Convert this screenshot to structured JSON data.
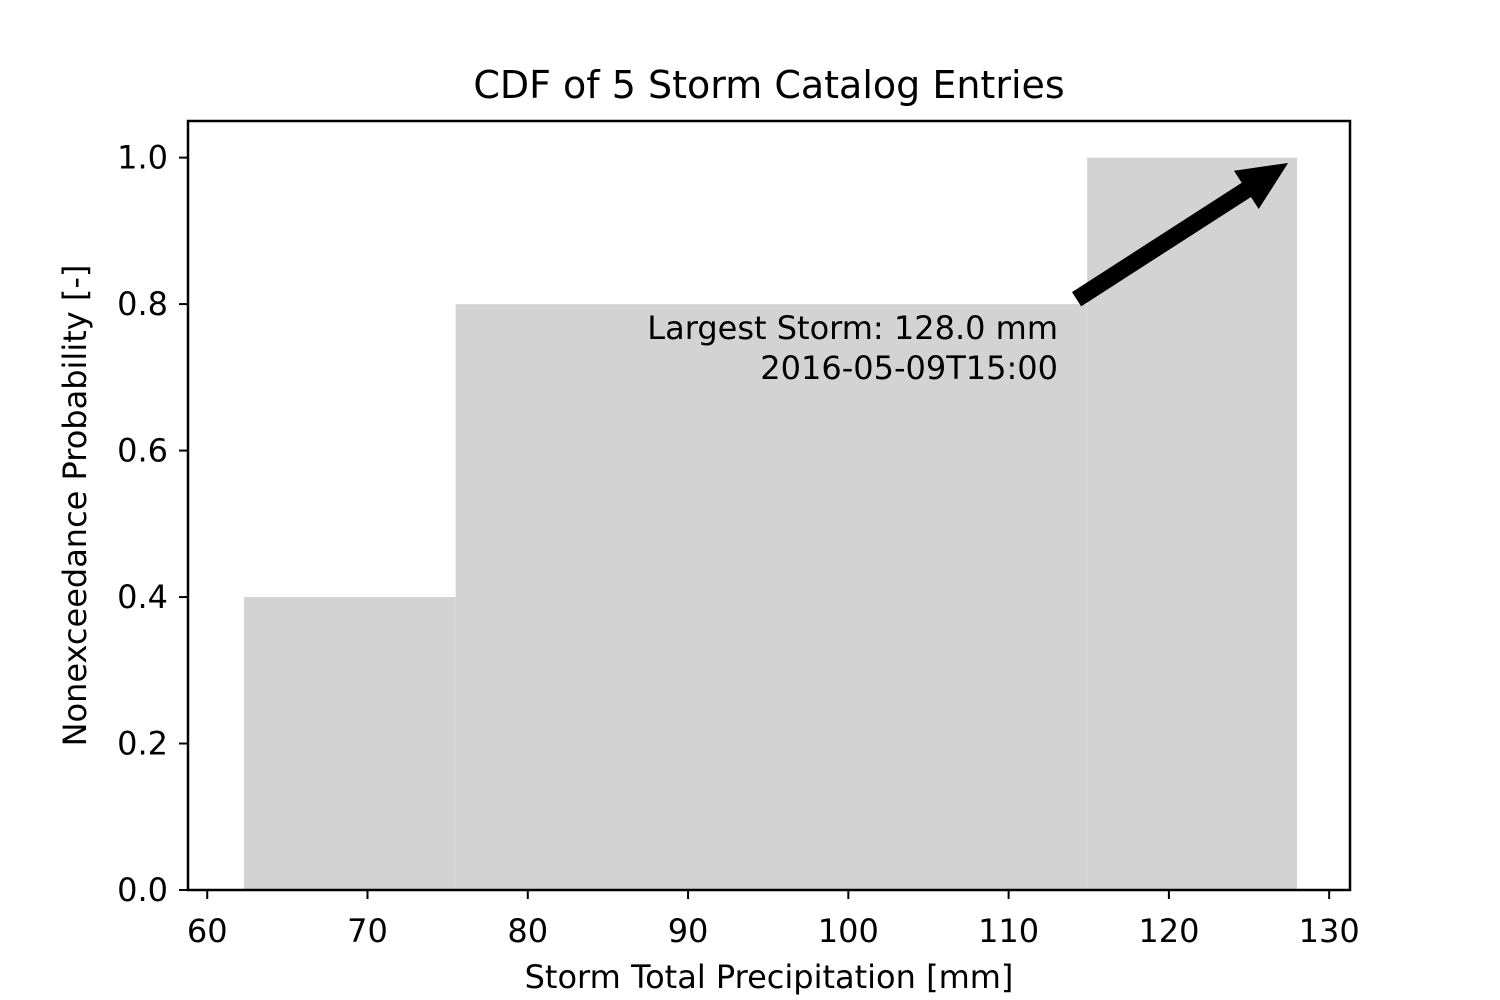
{
  "chart_data": {
    "type": "bar",
    "title": "CDF of 5 Storm Catalog Entries",
    "xlabel": "Storm Total Precipitation [mm]",
    "ylabel": "Nonexceedance Probability [-]",
    "xlim": [
      58.8,
      131.3
    ],
    "ylim": [
      0,
      1.05
    ],
    "xticks": [
      60,
      70,
      80,
      90,
      100,
      110,
      120,
      130
    ],
    "xtick_labels": [
      "60",
      "70",
      "80",
      "90",
      "100",
      "110",
      "120",
      "130"
    ],
    "yticks": [
      0.0,
      0.2,
      0.4,
      0.6,
      0.8,
      1.0
    ],
    "ytick_labels": [
      "0.0",
      "0.2",
      "0.4",
      "0.6",
      "0.8",
      "1.0"
    ],
    "bars": [
      {
        "x_start": 62.3,
        "x_end": 75.5,
        "value": 0.4
      },
      {
        "x_start": 75.5,
        "x_end": 114.9,
        "value": 0.8
      },
      {
        "x_start": 114.9,
        "x_end": 128.0,
        "value": 1.0
      }
    ],
    "bar_color": "#d3d3d3",
    "grid": false,
    "annotation": {
      "line1": "Largest Storm: 128.0 mm",
      "line2": "2016-05-09T15:00",
      "arrow_target": {
        "x": 128.0,
        "y": 1.0
      },
      "arrow_color": "#000000"
    }
  }
}
